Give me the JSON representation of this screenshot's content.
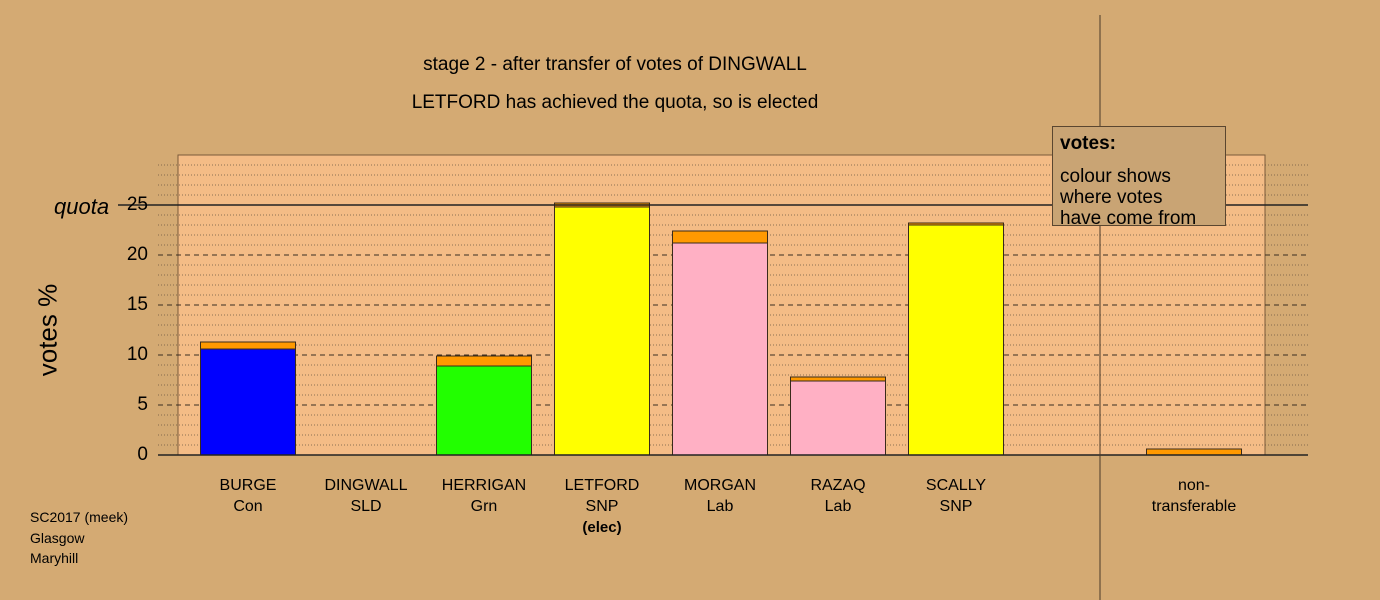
{
  "chart_data": {
    "type": "bar",
    "title": "stage 2 - after transfer of votes of DINGWALL",
    "subtitle": "LETFORD has achieved the quota, so is elected",
    "ylabel": "votes %",
    "ylim": [
      0,
      30
    ],
    "yticks": [
      0,
      5,
      10,
      15,
      20,
      25
    ],
    "quota": {
      "label": "quota",
      "value": 25
    },
    "grid": true,
    "legend_title": "votes:",
    "legend_text": [
      "colour shows",
      "where votes",
      "have come from"
    ],
    "legend_position": "top-right",
    "candidates": [
      {
        "name": "BURGE",
        "party": "Con",
        "note": "",
        "base": 10.6,
        "transfer": 0.7,
        "color": "#0000ff"
      },
      {
        "name": "DINGWALL",
        "party": "SLD",
        "note": "",
        "base": 0,
        "transfer": 0,
        "color": "#ffaa00"
      },
      {
        "name": "HERRIGAN",
        "party": "Grn",
        "note": "",
        "base": 8.9,
        "transfer": 1.0,
        "color": "#22ff00"
      },
      {
        "name": "LETFORD",
        "party": "SNP",
        "note": "(elec)",
        "base": 24.8,
        "transfer": 0.4,
        "color": "#ffff00"
      },
      {
        "name": "MORGAN",
        "party": "Lab",
        "note": "",
        "base": 21.2,
        "transfer": 1.2,
        "color": "#ffb0c4"
      },
      {
        "name": "RAZAQ",
        "party": "Lab",
        "note": "",
        "base": 7.4,
        "transfer": 0.4,
        "color": "#ffb0c4"
      },
      {
        "name": "SCALLY",
        "party": "SNP",
        "note": "",
        "base": 23.0,
        "transfer": 0.2,
        "color": "#ffff00"
      }
    ],
    "nontransferable": {
      "label_line1": "non-",
      "label_line2": "transferable",
      "value": 0.6
    },
    "transfer_color": "#ff9900"
  },
  "source": [
    "SC2017 (meek)",
    "Glasgow",
    "Maryhill"
  ]
}
